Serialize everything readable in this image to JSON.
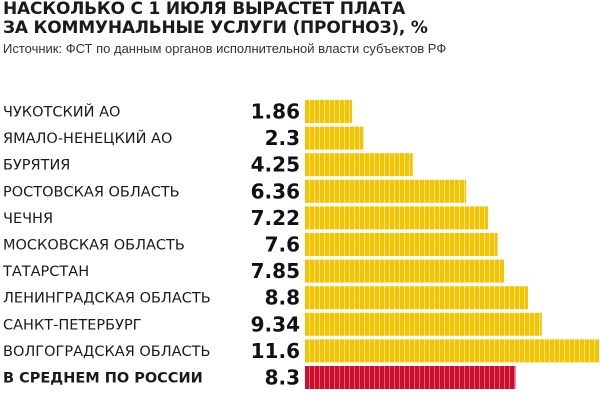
{
  "chart_data": {
    "type": "bar",
    "orientation": "horizontal",
    "title_lines": [
      "НАСКОЛЬКО С 1 ИЮЛЯ ВЫРАСТЕТ ПЛАТА",
      "ЗА КОММУНАЛЬНЫЕ УСЛУГИ (ПРОГНОЗ), %"
    ],
    "source": "Источник: ФСТ по данным органов исполнительной власти субъектов РФ",
    "categories": [
      "ЧУКОТСКИЙ АО",
      "ЯМАЛО-НЕНЕЦКИЙ АО",
      "БУРЯТИЯ",
      "РОСТОВСКАЯ ОБЛАСТЬ",
      "ЧЕЧНЯ",
      "МОСКОВСКАЯ ОБЛАСТЬ",
      "ТАТАРСТАН",
      "ЛЕНИНГРАДСКАЯ ОБЛАСТЬ",
      "САНКТ-ПЕТЕРБУРГ",
      "ВОЛГОГРАДСКАЯ ОБЛАСТЬ",
      "В СРЕДНЕМ ПО РОССИИ"
    ],
    "value_labels": [
      "1.86",
      "2.3",
      "4.25",
      "6.36",
      "7.22",
      "7.6",
      "7.85",
      "8.8",
      "9.34",
      "11.6",
      "8.3"
    ],
    "values": [
      1.86,
      2.3,
      4.25,
      6.36,
      7.22,
      7.6,
      7.85,
      8.8,
      9.34,
      11.6,
      8.3
    ],
    "highlight_index": 10,
    "xlim": [
      0,
      11.6
    ],
    "unit": "%"
  },
  "colors": {
    "bar": "#f5c400",
    "bar_stripe": "#fbe48a",
    "highlight": "#c8102e",
    "highlight_stripe": "#e8606e",
    "text": "#1a1a1a"
  }
}
